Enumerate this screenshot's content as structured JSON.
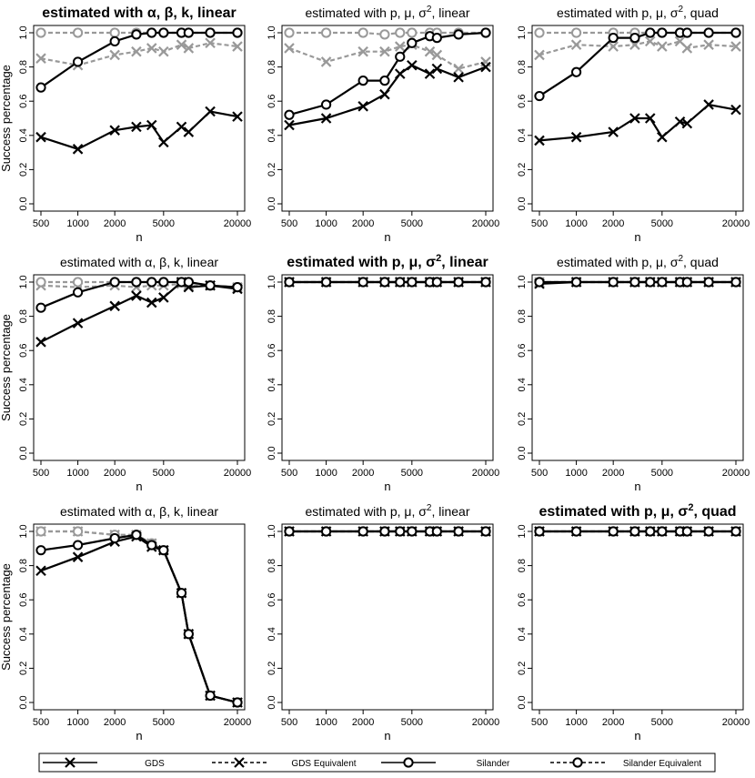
{
  "chart_data": {
    "type": "line",
    "xscale": "log",
    "x": [
      500,
      1000,
      2000,
      3000,
      4000,
      5000,
      7000,
      8000,
      12000,
      20000
    ],
    "xticks": [
      500,
      1000,
      2000,
      5000,
      20000
    ],
    "xtick_labels": [
      "500",
      "1000",
      "2000",
      "5000",
      "20000"
    ],
    "ylim": [
      0,
      1
    ],
    "yticks": [
      "0.0",
      "0.2",
      "0.4",
      "0.6",
      "0.8",
      "1.0"
    ],
    "xlabel": "n",
    "ylabel": "Success percentage",
    "series_styles": [
      {
        "name": "GDS",
        "color": "#000000",
        "dashed": false,
        "marker": "x"
      },
      {
        "name": "GDS Equivalent",
        "color": "#999999",
        "dashed": true,
        "marker": "x"
      },
      {
        "name": "Silander",
        "color": "#000000",
        "dashed": false,
        "marker": "o"
      },
      {
        "name": "Silander Equivalent",
        "color": "#999999",
        "dashed": true,
        "marker": "o"
      }
    ],
    "legend": [
      "GDS",
      "GDS Equivalent",
      "Silander",
      "Silander Equivalent"
    ],
    "panels": [
      {
        "title": "estimated with α, β, k, linear",
        "bold": true,
        "superscript": false,
        "series": [
          [
            0.39,
            0.32,
            0.43,
            0.45,
            0.46,
            0.36,
            0.45,
            0.42,
            0.54,
            0.51
          ],
          [
            0.85,
            0.81,
            0.87,
            0.89,
            0.91,
            0.89,
            0.93,
            0.91,
            0.94,
            0.92
          ],
          [
            0.68,
            0.83,
            0.95,
            0.99,
            1.0,
            1.0,
            1.0,
            1.0,
            1.0,
            1.0
          ],
          [
            1.0,
            1.0,
            1.0,
            1.0,
            1.0,
            1.0,
            1.0,
            1.0,
            1.0,
            1.0
          ]
        ]
      },
      {
        "title": "estimated with p, μ, σ",
        "sup": "2",
        "tail": ", linear",
        "bold": false,
        "superscript": true,
        "series": [
          [
            0.46,
            0.5,
            0.57,
            0.64,
            0.76,
            0.81,
            0.76,
            0.79,
            0.74,
            0.8
          ],
          [
            0.91,
            0.83,
            0.89,
            0.89,
            0.92,
            0.93,
            0.89,
            0.87,
            0.79,
            0.83
          ],
          [
            0.52,
            0.58,
            0.72,
            0.72,
            0.86,
            0.94,
            0.98,
            0.97,
            0.99,
            1.0
          ],
          [
            1.0,
            1.0,
            1.0,
            0.99,
            1.0,
            1.0,
            1.0,
            1.0,
            1.0,
            1.0
          ]
        ]
      },
      {
        "title": "estimated with p, μ, σ",
        "sup": "2",
        "tail": ", quad",
        "bold": false,
        "superscript": true,
        "series": [
          [
            0.37,
            0.39,
            0.42,
            0.5,
            0.5,
            0.39,
            0.48,
            0.47,
            0.58,
            0.55
          ],
          [
            0.87,
            0.93,
            0.92,
            0.93,
            0.95,
            0.92,
            0.95,
            0.91,
            0.93,
            0.92
          ],
          [
            0.63,
            0.77,
            0.97,
            0.97,
            1.0,
            1.0,
            1.0,
            1.0,
            1.0,
            1.0
          ],
          [
            1.0,
            1.0,
            1.0,
            1.0,
            1.0,
            1.0,
            1.0,
            1.0,
            1.0,
            1.0
          ]
        ]
      },
      {
        "title": "estimated with α, β, k, linear",
        "bold": false,
        "superscript": false,
        "series": [
          [
            0.65,
            0.76,
            0.86,
            0.92,
            0.88,
            0.91,
            1.0,
            0.97,
            0.98,
            0.96
          ],
          [
            0.98,
            0.97,
            0.98,
            0.97,
            0.98,
            0.98,
            0.99,
            0.98,
            0.98,
            0.97
          ],
          [
            0.85,
            0.94,
            1.0,
            1.0,
            1.0,
            1.0,
            1.0,
            1.0,
            0.98,
            0.97
          ],
          [
            1.0,
            1.0,
            1.0,
            1.0,
            1.0,
            1.0,
            1.0,
            1.0,
            0.98,
            0.97
          ]
        ]
      },
      {
        "title": "estimated with p, μ, σ",
        "sup": "2",
        "tail": ", linear",
        "bold": true,
        "superscript": true,
        "series": [
          [
            1,
            1,
            1,
            1,
            1,
            1,
            1,
            1,
            1,
            1
          ],
          [
            1,
            1,
            1,
            1,
            1,
            1,
            1,
            1,
            1,
            1
          ],
          [
            1,
            1,
            1,
            1,
            1,
            1,
            1,
            1,
            1,
            1
          ],
          [
            1,
            1,
            1,
            1,
            1,
            1,
            1,
            1,
            1,
            1
          ]
        ]
      },
      {
        "title": "estimated with p, μ, σ",
        "sup": "2",
        "tail": ", quad",
        "bold": false,
        "superscript": true,
        "series": [
          [
            0.99,
            1,
            1,
            1,
            1,
            1,
            1,
            1,
            1,
            1
          ],
          [
            1,
            1,
            1,
            1,
            1,
            1,
            1,
            1,
            1,
            1
          ],
          [
            1.0,
            1,
            1,
            1,
            1,
            1,
            1,
            1,
            1,
            1
          ],
          [
            1,
            1,
            1,
            1,
            1,
            1,
            1,
            1,
            1,
            1
          ]
        ]
      },
      {
        "title": "estimated with α, β, k, linear",
        "bold": false,
        "superscript": false,
        "series": [
          [
            0.77,
            0.85,
            0.94,
            0.97,
            0.91,
            0.89,
            0.64,
            0.4,
            0.04,
            0.0
          ],
          [
            1.0,
            1.0,
            0.98,
            0.98,
            0.93,
            0.89,
            0.64,
            0.4,
            0.04,
            0.0
          ],
          [
            0.89,
            0.92,
            0.96,
            0.98,
            0.92,
            0.89,
            0.64,
            0.4,
            0.04,
            0.0
          ],
          [
            1.0,
            1.0,
            0.98,
            0.98,
            0.93,
            0.89,
            0.64,
            0.4,
            0.04,
            0.0
          ]
        ]
      },
      {
        "title": "estimated with p, μ, σ",
        "sup": "2",
        "tail": ", linear",
        "bold": false,
        "superscript": true,
        "series": [
          [
            1,
            1,
            1,
            1,
            1,
            1,
            1,
            1,
            1,
            1
          ],
          [
            1,
            1,
            1,
            1,
            1,
            1,
            1,
            1,
            1,
            1
          ],
          [
            1,
            1,
            1,
            1,
            1,
            1,
            1,
            1,
            1,
            1
          ],
          [
            1,
            1,
            1,
            1,
            1,
            1,
            1,
            1,
            1,
            1
          ]
        ]
      },
      {
        "title": "estimated with p, μ, σ",
        "sup": "2",
        "tail": ", quad",
        "bold": true,
        "superscript": true,
        "series": [
          [
            1,
            1,
            1,
            1,
            1,
            1,
            1,
            1,
            1,
            1
          ],
          [
            1,
            1,
            1,
            1,
            1,
            1,
            1,
            1,
            1,
            1
          ],
          [
            1,
            1,
            1,
            1,
            1,
            1,
            1,
            1,
            1,
            1
          ],
          [
            1,
            1,
            1,
            1,
            1,
            1,
            1,
            1,
            1,
            1
          ]
        ]
      }
    ]
  }
}
